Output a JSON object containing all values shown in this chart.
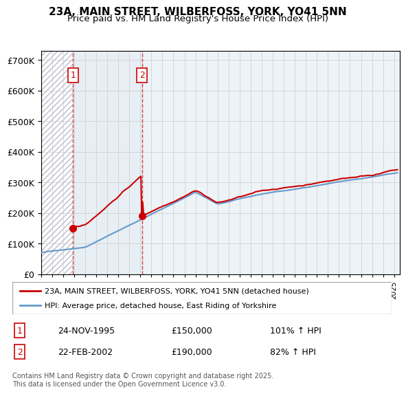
{
  "title_line1": "23A, MAIN STREET, WILBERFOSS, YORK, YO41 5NN",
  "title_line2": "Price paid vs. HM Land Registry's House Price Index (HPI)",
  "legend_red": "23A, MAIN STREET, WILBERFOSS, YORK, YO41 5NN (detached house)",
  "legend_blue": "HPI: Average price, detached house, East Riding of Yorkshire",
  "transaction1_label": "1",
  "transaction1_date": "24-NOV-1995",
  "transaction1_price": "£150,000",
  "transaction1_hpi": "101% ↑ HPI",
  "transaction2_label": "2",
  "transaction2_date": "22-FEB-2002",
  "transaction2_price": "£190,000",
  "transaction2_hpi": "82% ↑ HPI",
  "footnote": "Contains HM Land Registry data © Crown copyright and database right 2025.\nThis data is licensed under the Open Government Licence v3.0.",
  "red_color": "#cc0000",
  "blue_color": "#6699cc",
  "hatched_bg_color": "#e8e8f0",
  "shaded_bg_color": "#dde8f0",
  "transaction1_x": 1995.9,
  "transaction2_x": 2002.15,
  "ylim_min": 0,
  "ylim_max": 730000,
  "xlim_min": 1993.0,
  "xlim_max": 2025.5
}
